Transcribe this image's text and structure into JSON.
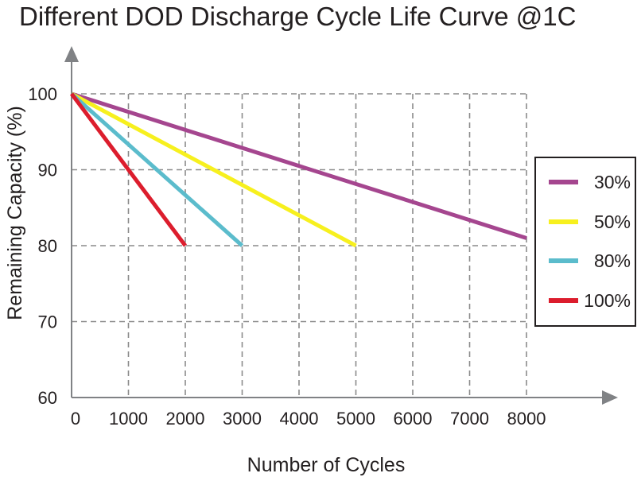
{
  "chart_data": {
    "type": "line",
    "title": "Different DOD Discharge Cycle Life Curve @1C",
    "xlabel": "Number of Cycles",
    "ylabel": "Remaining Capacity (%)",
    "xlim": [
      0,
      8000
    ],
    "ylim": [
      60,
      100
    ],
    "x_ticks": [
      "0",
      "1000",
      "2000",
      "3000",
      "4000",
      "5000",
      "6000",
      "7000",
      "8000"
    ],
    "y_ticks": [
      "60",
      "70",
      "80",
      "90",
      "100"
    ],
    "grid": true,
    "legend_position": "right",
    "series": [
      {
        "name": "30%",
        "color": "#a5468f",
        "x": [
          0,
          8000
        ],
        "y": [
          100,
          81
        ]
      },
      {
        "name": "50%",
        "color": "#f7f01e",
        "x": [
          0,
          5000
        ],
        "y": [
          100,
          80
        ]
      },
      {
        "name": "80%",
        "color": "#5bbccc",
        "x": [
          0,
          3000
        ],
        "y": [
          100,
          80
        ]
      },
      {
        "name": "100%",
        "color": "#dc1d2d",
        "x": [
          0,
          2000
        ],
        "y": [
          100,
          80
        ]
      }
    ]
  }
}
